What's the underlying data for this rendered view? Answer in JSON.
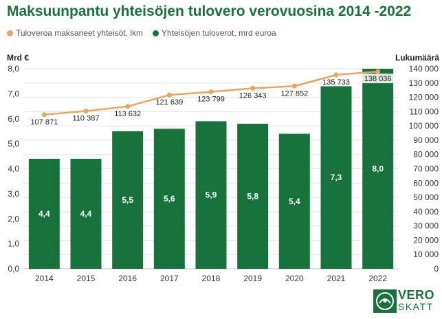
{
  "chart_data": {
    "type": "bar",
    "title": "Maksuunpantu yhteisöjen tulovero verovuosina 2014 -2022",
    "categories": [
      "2014",
      "2015",
      "2016",
      "2017",
      "2018",
      "2019",
      "2020",
      "2021",
      "2022"
    ],
    "series": [
      {
        "name": "Yhteisöjen tuloverot, mrd euroa",
        "type": "bar",
        "axis": "left",
        "color": "#17733b",
        "values": [
          4.4,
          4.4,
          5.5,
          5.6,
          5.9,
          5.8,
          5.4,
          7.3,
          8.0
        ],
        "labels": [
          "4,4",
          "4,4",
          "5,5",
          "5,6",
          "5,9",
          "5,8",
          "5,4",
          "7,3",
          "8,0"
        ]
      },
      {
        "name": "Tuloveroa maksaneet yhteisöt, lkm",
        "type": "line",
        "axis": "right",
        "color": "#e8a55f",
        "values": [
          107871,
          110387,
          113632,
          121639,
          123799,
          126343,
          127852,
          135733,
          138036
        ],
        "labels": [
          "107 871",
          "110 387",
          "113 632",
          "121 639",
          "123 799",
          "126 343",
          "127 852",
          "135 733",
          "138 036"
        ]
      }
    ],
    "left_axis": {
      "title": "Mrd €",
      "range": [
        0,
        8
      ],
      "ticks": [
        0,
        1,
        2,
        3,
        4,
        5,
        6,
        7,
        8
      ],
      "tick_labels": [
        "0,0",
        "1,0",
        "2,0",
        "3,0",
        "4,0",
        "5,0",
        "6,0",
        "7,0",
        "8,0"
      ]
    },
    "right_axis": {
      "title": "Lukumäärä",
      "range": [
        0,
        140000
      ],
      "ticks": [
        0,
        10000,
        20000,
        30000,
        40000,
        50000,
        60000,
        70000,
        80000,
        90000,
        100000,
        110000,
        120000,
        130000,
        140000
      ],
      "tick_labels": [
        "0",
        "10 000",
        "20 000",
        "30 000",
        "40 000",
        "50 000",
        "60 000",
        "70 000",
        "80 000",
        "90 000",
        "100 000",
        "110 000",
        "120 000",
        "130 000",
        "140 000"
      ]
    },
    "legend_position": "top-left",
    "grid": true
  },
  "logo": {
    "line1": "VERO",
    "line2": "SKATT"
  }
}
